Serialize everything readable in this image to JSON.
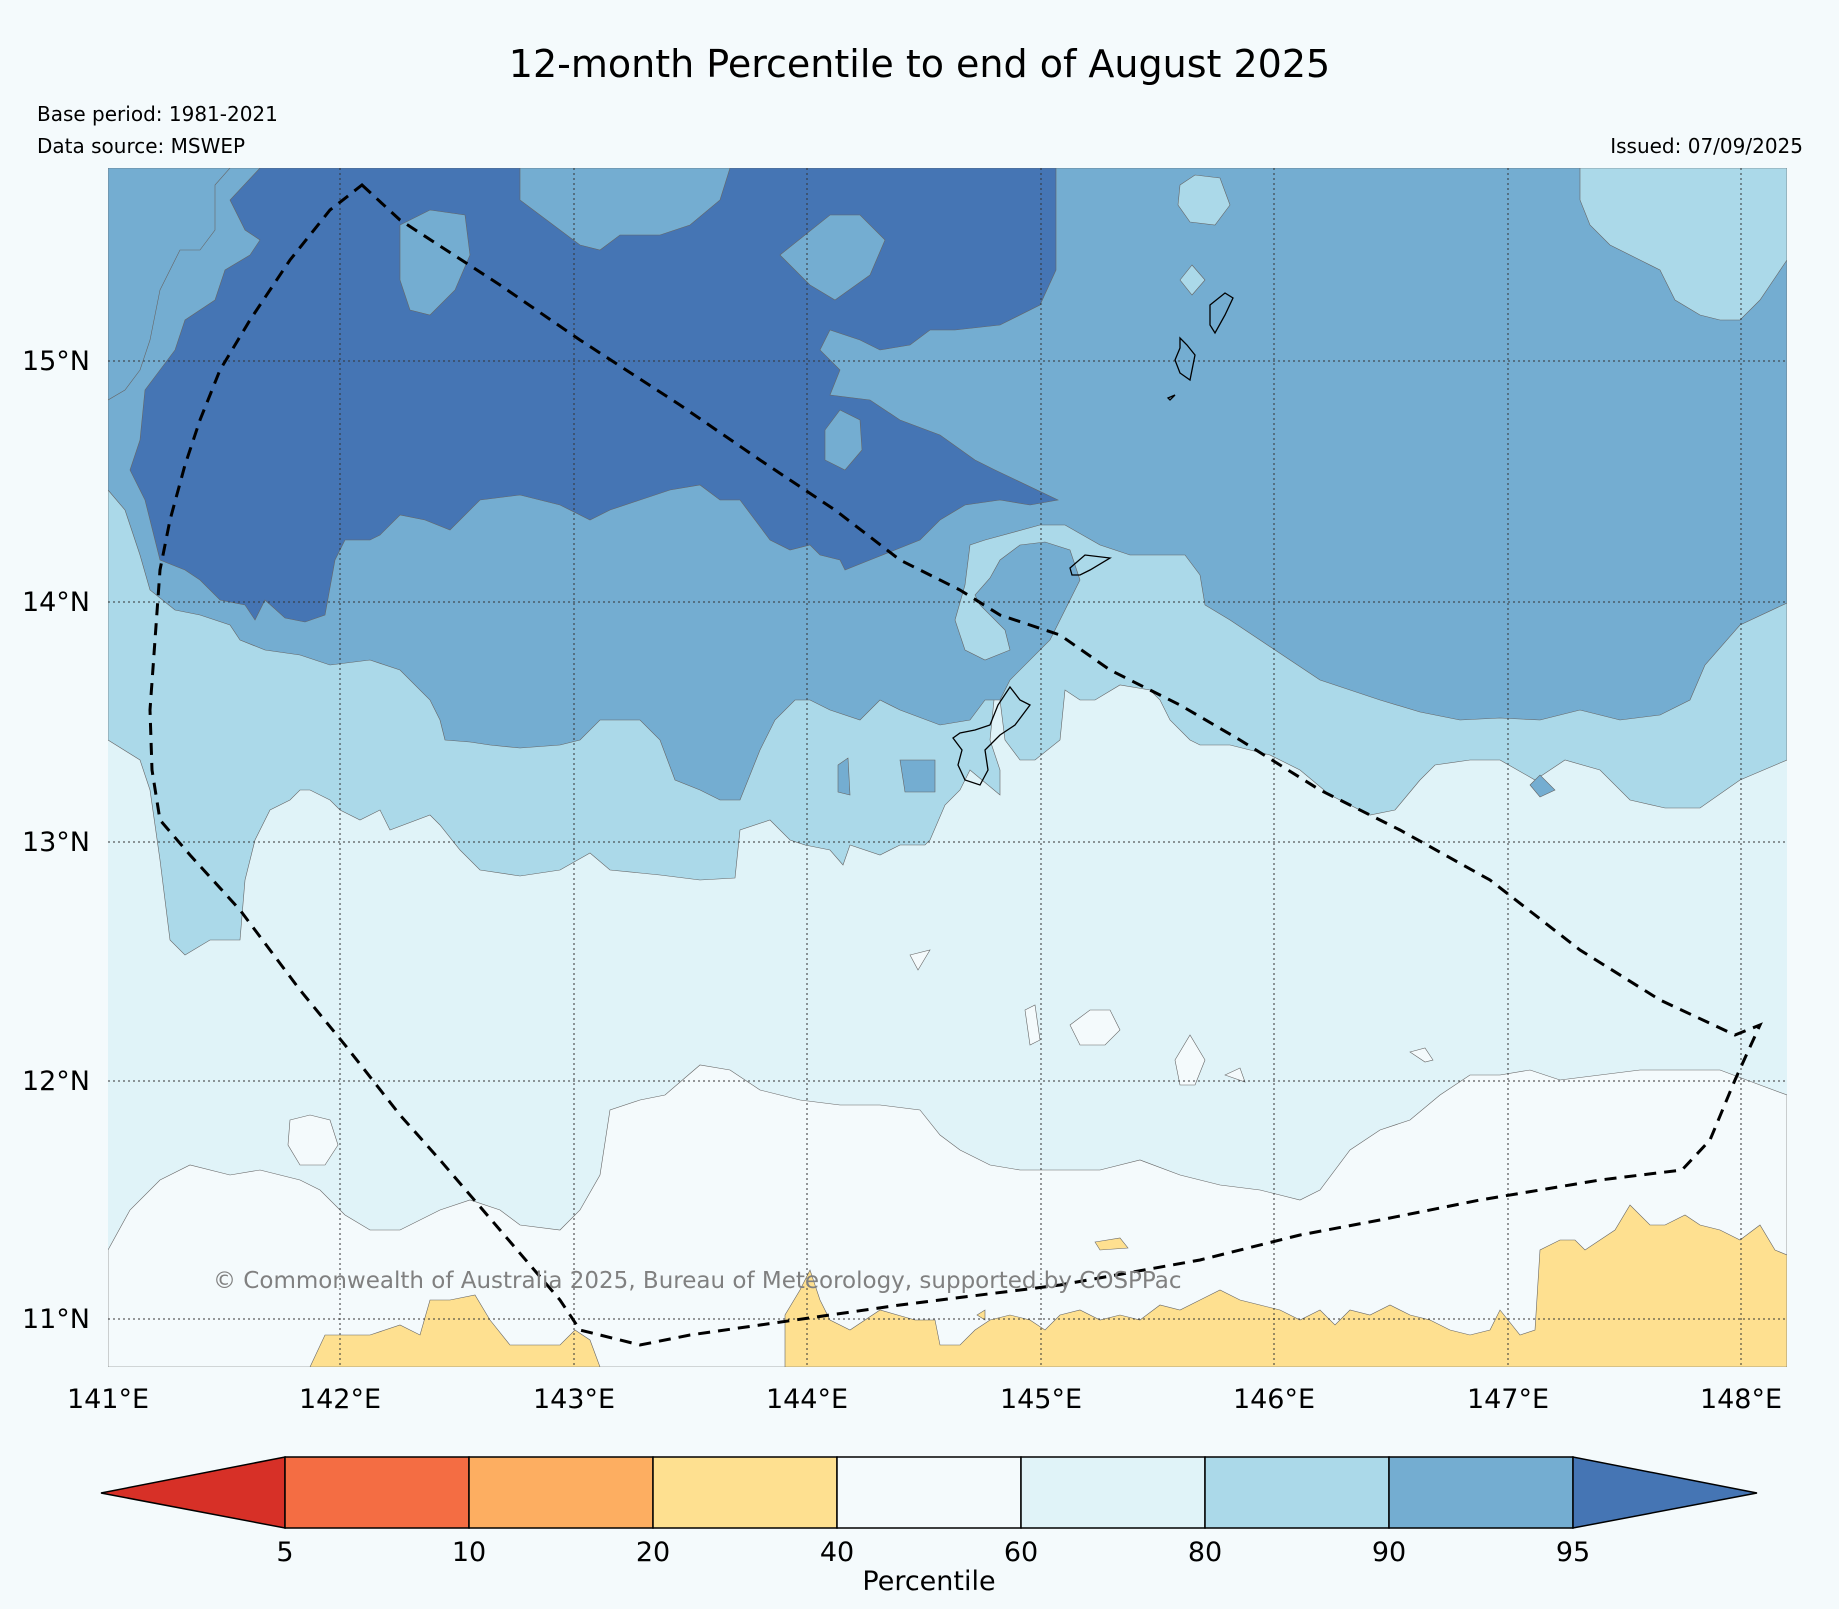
{
  "header": {
    "title": "12-month Percentile to end of August 2025",
    "base_period": "Base period: 1981-2021",
    "data_source": "Data source: MSWEP",
    "issued": "Issued: 07/09/2025"
  },
  "map": {
    "lon_labels": [
      "141°E",
      "142°E",
      "143°E",
      "144°E",
      "145°E",
      "146°E",
      "147°E",
      "148°E"
    ],
    "lat_labels": [
      "15°N",
      "14°N",
      "13°N",
      "12°N",
      "11°N"
    ],
    "copyright": "© Commonwealth of Australia 2025, Bureau of Meteorology, supported by COSPPac",
    "colors": {
      "p40_60": "#f4fafc",
      "p60_80": "#e0f3f8",
      "p80_90": "#abd9e9",
      "p90_95": "#74add1",
      "p95_plus": "#4575b4",
      "p20_40": "#fee090"
    }
  },
  "legend": {
    "label": "Percentile",
    "ticks": [
      "5",
      "10",
      "20",
      "40",
      "60",
      "80",
      "90",
      "95"
    ],
    "colors": [
      "#d73027",
      "#f46d43",
      "#fdae61",
      "#fee090",
      "#f4fafc",
      "#e0f3f8",
      "#abd9e9",
      "#74add1",
      "#4575b4"
    ]
  }
}
